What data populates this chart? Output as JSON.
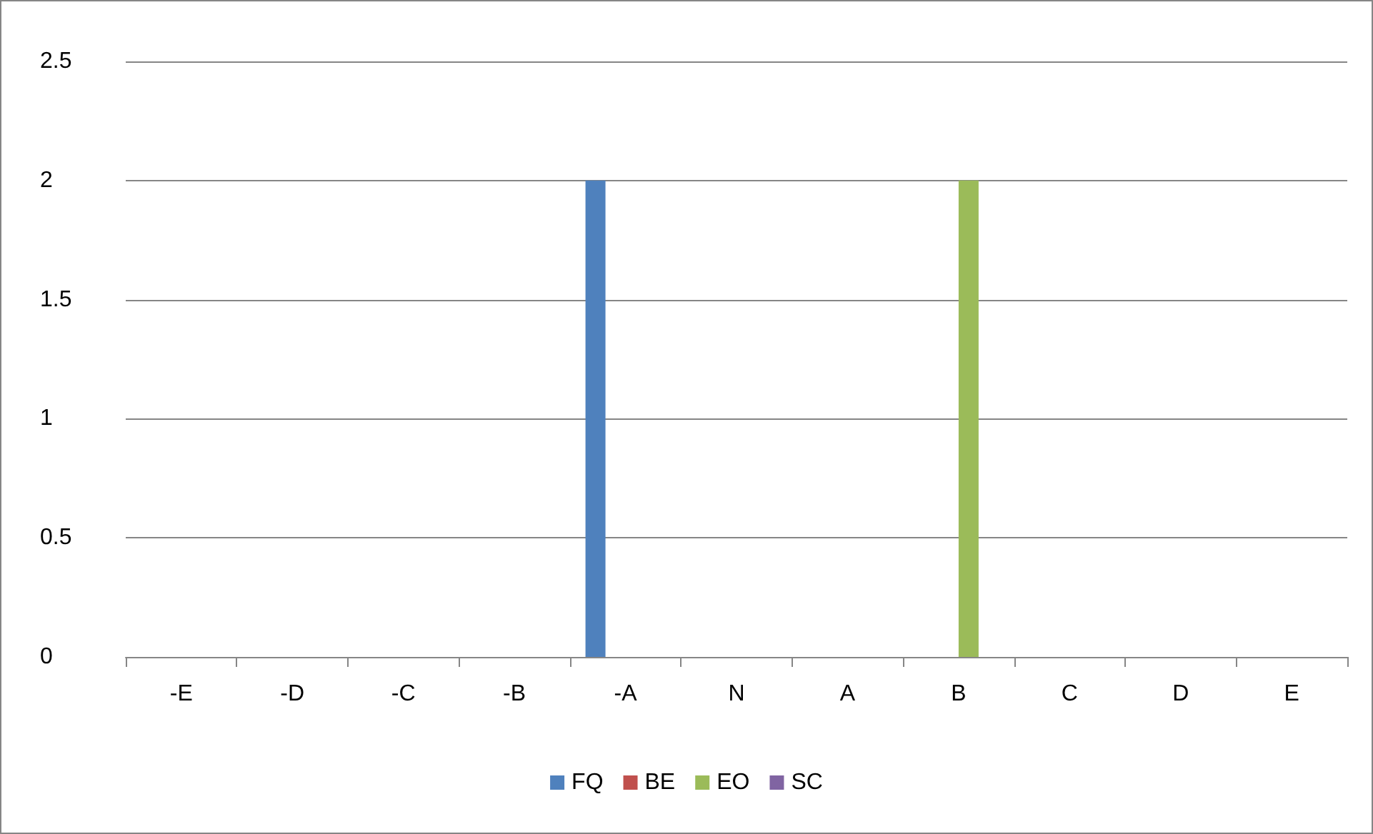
{
  "chart_data": {
    "type": "bar",
    "categories": [
      "-E",
      "-D",
      "-C",
      "-B",
      "-A",
      "N",
      "A",
      "B",
      "C",
      "D",
      "E"
    ],
    "series": [
      {
        "name": "FQ",
        "color": "#4f81bd",
        "values": [
          0,
          0,
          0,
          0,
          2,
          0,
          0,
          0,
          0,
          0,
          0
        ]
      },
      {
        "name": "BE",
        "color": "#c0504d",
        "values": [
          0,
          0,
          0,
          0,
          0,
          0,
          0,
          0,
          0,
          0,
          0
        ]
      },
      {
        "name": "EO",
        "color": "#9bbb59",
        "values": [
          0,
          0,
          0,
          0,
          0,
          0,
          0,
          2,
          0,
          0,
          0
        ]
      },
      {
        "name": "SC",
        "color": "#8064a2",
        "values": [
          0,
          0,
          0,
          0,
          0,
          0,
          0,
          0,
          0,
          0,
          0
        ]
      }
    ],
    "ylim": [
      0,
      2.5
    ],
    "yticks": [
      0,
      0.5,
      1,
      1.5,
      2,
      2.5
    ],
    "grid": "y",
    "legend": "bottom"
  }
}
